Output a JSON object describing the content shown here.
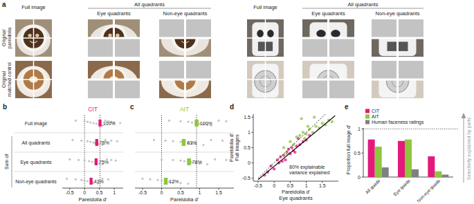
{
  "panel_a": {
    "panel_label": "a",
    "rows": [
      [
        "Original",
        "pareidolia"
      ],
      [
        "Original",
        "matched control"
      ]
    ],
    "groups": [
      {
        "full_image": "Full image",
        "all_quadrants": "All quadrants",
        "eye_quadrants": "Eye quadrants",
        "non_eye_quadrants": "Non-eye quadrants"
      },
      {
        "full_image": "Full image",
        "all_quadrants": "All quadrants",
        "eye_quadrants": "Eye quadrants",
        "non_eye_quadrants": "Non-eye quadrants"
      }
    ]
  },
  "chart_data": [
    {
      "type": "strip",
      "panel_label": "b",
      "title": "CIT",
      "color": "#e4197e",
      "categories": [
        "Full image",
        "All quadrants",
        "Eye quadrants",
        "Non-eye quadrants"
      ],
      "group_label": "Sum of",
      "values": [
        0.52,
        0.41,
        0.39,
        0.22
      ],
      "errors": [
        0.05,
        0.05,
        0.05,
        0.05
      ],
      "percent_labels": [
        "100%",
        "78%",
        "75%",
        "43%"
      ],
      "points": [
        [
          -0.3,
          0,
          0.1,
          0.2,
          0.3,
          0.4,
          0.5,
          0.55,
          0.6,
          0.7,
          0.8,
          0.9,
          1.0,
          1.2
        ],
        [
          -0.4,
          -0.1,
          0.1,
          0.2,
          0.3,
          0.35,
          0.45,
          0.5,
          0.6,
          0.7,
          0.9,
          1.1
        ],
        [
          -0.5,
          -0.2,
          0.0,
          0.15,
          0.25,
          0.35,
          0.4,
          0.5,
          0.6,
          0.75,
          0.9,
          1.05
        ],
        [
          -0.6,
          -0.3,
          -0.1,
          0.0,
          0.1,
          0.2,
          0.25,
          0.3,
          0.45,
          0.6,
          0.8
        ]
      ],
      "ref_lines": [
        0,
        0.52
      ],
      "xlim": [
        -0.75,
        1.3
      ],
      "xticks": [
        -0.5,
        0,
        0.5,
        1
      ],
      "xlabel": "Pareidolia d'"
    },
    {
      "type": "strip",
      "panel_label": "c",
      "title": "AIT",
      "color": "#8dc63f",
      "values": [
        0.92,
        0.58,
        0.72,
        0.11
      ],
      "errors": [
        0.05,
        0.05,
        0.05,
        0.05
      ],
      "percent_labels": [
        "100%",
        "63%",
        "78%",
        "12%"
      ],
      "points": [
        [
          0.2,
          0.5,
          0.7,
          0.8,
          0.9,
          1.0,
          1.1,
          1.2,
          1.3,
          1.5,
          1.7
        ],
        [
          -0.2,
          0.1,
          0.3,
          0.5,
          0.6,
          0.7,
          0.8,
          0.9,
          1.1,
          1.3,
          1.6
        ],
        [
          0.0,
          0.3,
          0.5,
          0.6,
          0.7,
          0.8,
          0.9,
          1.0,
          1.2,
          1.4,
          1.7
        ],
        [
          -0.5,
          -0.3,
          -0.1,
          0.0,
          0.1,
          0.2,
          0.3,
          0.5,
          0.7
        ]
      ],
      "ref_lines": [
        0,
        0.92
      ],
      "xlim": [
        -0.7,
        1.9
      ],
      "xticks": [
        -0.5,
        0,
        0.5,
        1,
        1.5
      ],
      "xlabel": "Pareidolia d'"
    },
    {
      "type": "scatter",
      "panel_label": "d",
      "xlabel": [
        "Pareidolia d'",
        "Eye quadrants"
      ],
      "ylabel": [
        "Pareidolia d'",
        "Full images"
      ],
      "series": [
        {
          "color": "#e4197e",
          "x": [
            -0.3,
            -0.1,
            0.0,
            0.1,
            0.15,
            0.2,
            0.3,
            0.35,
            0.4,
            0.5,
            0.55,
            0.6,
            0.7,
            0.8,
            0.9,
            1.0,
            1.1,
            0.25,
            0.45,
            -0.2,
            0.65,
            0.75
          ],
          "values": [
            -0.4,
            -0.1,
            -0.2,
            0.1,
            0.0,
            0.2,
            0.25,
            0.1,
            0.35,
            0.3,
            0.5,
            0.4,
            0.55,
            0.6,
            0.7,
            0.75,
            0.9,
            0.05,
            0.45,
            -0.3,
            0.35,
            0.8
          ]
        },
        {
          "color": "#8dc63f",
          "x": [
            0.3,
            0.5,
            0.6,
            0.7,
            0.8,
            0.9,
            1.0,
            1.1,
            1.2,
            1.3,
            1.4,
            1.5,
            1.6,
            1.7,
            1.8,
            0.85,
            0.95,
            1.05,
            1.25,
            0.4
          ],
          "values": [
            0.5,
            0.7,
            0.6,
            0.85,
            0.9,
            1.0,
            0.95,
            1.1,
            1.0,
            1.2,
            1.15,
            1.3,
            1.25,
            1.4,
            1.35,
            1.45,
            0.8,
            1.2,
            1.5,
            0.3
          ]
        }
      ],
      "fit_lines": [
        {
          "x": [
            -0.5,
            1.9
          ],
          "values": [
            -0.55,
            1.55
          ],
          "line_style": "solid",
          "color": "#000000"
        },
        {
          "x": [
            -0.5,
            1.6
          ],
          "values": [
            -0.5,
            1.6
          ],
          "line_style": "dashed",
          "color": "#000000"
        }
      ],
      "annotation": [
        "80% explainable",
        "variance explained"
      ],
      "xlim": [
        -0.65,
        2.0
      ],
      "xticks": [
        -0.5,
        0,
        0.5,
        1,
        1.5
      ],
      "ylim": [
        -0.6,
        1.6
      ],
      "yticks": [
        -0.5,
        0,
        0.5,
        1,
        1.5
      ]
    },
    {
      "type": "bar",
      "panel_label": "e",
      "categories": [
        "All quads",
        "Eye quads",
        "Non-eye quads"
      ],
      "series": [
        {
          "name": "CIT",
          "color": "#e4197e",
          "values": [
            0.78,
            0.75,
            0.43
          ]
        },
        {
          "name": "AIT",
          "color": "#8dc63f",
          "values": [
            0.63,
            0.78,
            0.12
          ]
        },
        {
          "name": "Human faceness ratings",
          "color": "#808080",
          "values": [
            0.2,
            0.16,
            0.05
          ]
        }
      ],
      "ylabel": "Proportion full image d'",
      "annotation": "Selectivity explained by parts",
      "ref_lines": [
        1
      ],
      "legend": "top-left",
      "ylim": [
        0,
        1.02
      ],
      "yticks": [
        0,
        0.5,
        1
      ]
    }
  ]
}
